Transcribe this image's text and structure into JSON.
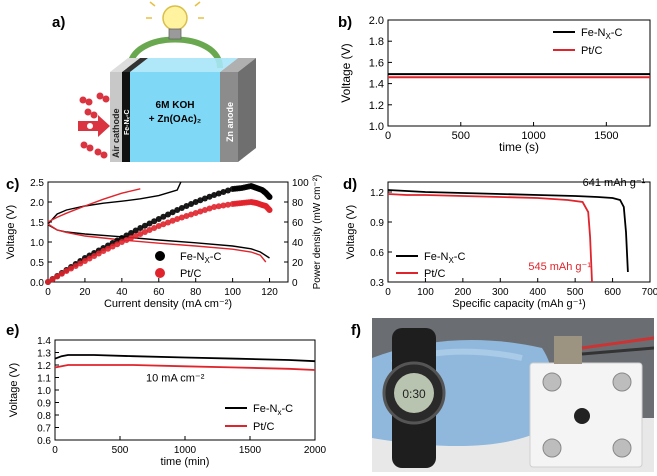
{
  "panel_labels": {
    "a": "a)",
    "b": "b)",
    "c": "c)",
    "d": "d)",
    "e": "e)",
    "f": "f)"
  },
  "schematic": {
    "air_cathode": "Air cathode",
    "catalyst": "Fe-Nₓ-C",
    "electrolyte_line1": "6M KOH",
    "electrolyte_line2": "+ Zn(OAc)₂",
    "anode": "Zn anode",
    "colors": {
      "tank": "#7fd8f5",
      "anode": "#8c8c8c",
      "cathode": "#c8c8c8",
      "wire": "#6aa84f",
      "oxygen": "#d9343f"
    }
  },
  "photo": {
    "watch_display": "0:30"
  },
  "colors": {
    "fe": "#000000",
    "pt": "#e0242c"
  },
  "chart_data": [
    {
      "id": "b",
      "type": "line",
      "xlabel": "time (s)",
      "ylabel": "Voltage (V)",
      "xlim": [
        0,
        1800
      ],
      "ylim": [
        1.0,
        2.0
      ],
      "xticks": [
        0,
        500,
        1000,
        1500
      ],
      "yticks": [
        1.0,
        1.2,
        1.4,
        1.6,
        1.8,
        2.0
      ],
      "legend": [
        {
          "name": "Fe-N",
          "sub": "X",
          "rest": "-C",
          "color": "#000000"
        },
        {
          "name": "Pt/C",
          "sub": "",
          "rest": "",
          "color": "#e0242c"
        }
      ],
      "legend_position": "top-right",
      "series": [
        {
          "name": "Fe-NX-C",
          "x": [
            0,
            1800
          ],
          "y": [
            1.49,
            1.49
          ]
        },
        {
          "name": "Pt/C",
          "x": [
            0,
            1800
          ],
          "y": [
            1.46,
            1.46
          ]
        }
      ]
    },
    {
      "id": "c",
      "type": "line",
      "xlabel": "Current density (mA cm⁻²)",
      "ylabel": "Voltage (V)",
      "y2label": "Power density (mW cm⁻²)",
      "xlim": [
        0,
        130
      ],
      "ylim": [
        0,
        2.5
      ],
      "y2lim": [
        0,
        100
      ],
      "xticks": [
        0,
        20,
        40,
        60,
        80,
        100,
        120
      ],
      "yticks": [
        0.0,
        0.5,
        1.0,
        1.5,
        2.0,
        2.5
      ],
      "y2ticks": [
        0,
        20,
        40,
        60,
        80,
        100
      ],
      "legend": [
        {
          "name": "Fe-N",
          "sub": "X",
          "rest": "-C",
          "color": "#000000"
        },
        {
          "name": "Pt/C",
          "sub": "",
          "rest": "",
          "color": "#e0242c"
        }
      ],
      "legend_position": "bottom-right",
      "charge": [
        {
          "name": "Fe-NX-C",
          "x": [
            0,
            5,
            10,
            20,
            30,
            40,
            50,
            60,
            70,
            72
          ],
          "y": [
            1.45,
            1.7,
            1.8,
            1.9,
            1.97,
            2.02,
            2.08,
            2.16,
            2.3,
            2.5
          ]
        },
        {
          "name": "Pt/C",
          "x": [
            0,
            5,
            10,
            20,
            30,
            40,
            50
          ],
          "y": [
            1.5,
            1.62,
            1.72,
            1.9,
            2.07,
            2.22,
            2.33
          ]
        }
      ],
      "discharge": [
        {
          "name": "Fe-NX-C",
          "x": [
            0,
            5,
            10,
            20,
            40,
            60,
            80,
            100,
            110,
            115,
            120
          ],
          "y": [
            1.43,
            1.3,
            1.25,
            1.2,
            1.13,
            1.05,
            0.98,
            0.9,
            0.83,
            0.75,
            0.6
          ]
        },
        {
          "name": "Pt/C",
          "x": [
            0,
            5,
            10,
            20,
            40,
            60,
            80,
            100,
            110,
            115,
            118
          ],
          "y": [
            1.45,
            1.3,
            1.24,
            1.15,
            1.05,
            0.97,
            0.9,
            0.82,
            0.75,
            0.67,
            0.5
          ]
        }
      ],
      "power": [
        {
          "name": "Fe-NX-C",
          "x": [
            0,
            10,
            20,
            30,
            40,
            50,
            60,
            70,
            80,
            90,
            100,
            105,
            110,
            113,
            116,
            118,
            120
          ],
          "y": [
            0,
            12,
            24,
            34,
            44,
            54,
            63,
            72,
            80,
            87,
            93,
            94,
            96,
            94,
            92,
            89,
            85
          ]
        },
        {
          "name": "Pt/C",
          "x": [
            0,
            10,
            20,
            30,
            40,
            50,
            60,
            70,
            80,
            90,
            100,
            105,
            110,
            113,
            116,
            118,
            120
          ],
          "y": [
            0,
            11,
            21,
            31,
            40,
            48,
            56,
            63,
            69,
            75,
            78,
            79,
            80,
            79,
            77,
            76,
            72
          ]
        }
      ]
    },
    {
      "id": "d",
      "type": "line",
      "xlabel": "Specific capacity (mAh g⁻¹)",
      "ylabel": "Voltage (V)",
      "xlim": [
        0,
        700
      ],
      "ylim": [
        0.3,
        1.3
      ],
      "xticks": [
        0,
        100,
        200,
        300,
        400,
        500,
        600,
        700
      ],
      "yticks": [
        0.3,
        0.6,
        0.9,
        1.2
      ],
      "legend": [
        {
          "name": "Fe-N",
          "sub": "X",
          "rest": "-C",
          "color": "#000000"
        },
        {
          "name": "Pt/C",
          "sub": "",
          "rest": "",
          "color": "#e0242c"
        }
      ],
      "legend_position": "bottom-left",
      "annotations": [
        {
          "text": "641 mAh g⁻¹",
          "color": "#000000"
        },
        {
          "text": "545 mAh g⁻¹",
          "color": "#e0242c"
        }
      ],
      "series": [
        {
          "name": "Fe-NX-C",
          "x": [
            0,
            50,
            100,
            200,
            300,
            400,
            500,
            560,
            600,
            620,
            630,
            636,
            641
          ],
          "y": [
            1.22,
            1.21,
            1.2,
            1.19,
            1.18,
            1.17,
            1.16,
            1.15,
            1.14,
            1.12,
            1.05,
            0.8,
            0.4
          ]
        },
        {
          "name": "Pt/C",
          "x": [
            0,
            50,
            100,
            200,
            300,
            400,
            480,
            520,
            535,
            540,
            545
          ],
          "y": [
            1.18,
            1.17,
            1.17,
            1.16,
            1.15,
            1.14,
            1.12,
            1.1,
            1.0,
            0.75,
            0.3
          ]
        }
      ]
    },
    {
      "id": "e",
      "type": "line",
      "xlabel": "time (min)",
      "ylabel": "Voltage (V)",
      "xlim": [
        0,
        2000
      ],
      "ylim": [
        0.6,
        1.4
      ],
      "xticks": [
        0,
        500,
        1000,
        1500,
        2000
      ],
      "yticks": [
        0.6,
        0.7,
        0.8,
        0.9,
        1.0,
        1.1,
        1.2,
        1.3,
        1.4
      ],
      "legend": [
        {
          "name": "Fe-N",
          "sub": "x",
          "rest": "-C",
          "color": "#000000"
        },
        {
          "name": "Pt/C",
          "sub": "",
          "rest": "",
          "color": "#e0242c"
        }
      ],
      "legend_position": "bottom-right",
      "annotation": "10 mA cm⁻²",
      "series": [
        {
          "name": "Fe-Nx-C",
          "x": [
            0,
            50,
            100,
            300,
            600,
            1000,
            1400,
            1800,
            2000
          ],
          "y": [
            1.25,
            1.27,
            1.28,
            1.28,
            1.27,
            1.26,
            1.25,
            1.24,
            1.23
          ]
        },
        {
          "name": "Pt/C",
          "x": [
            0,
            50,
            100,
            300,
            600,
            1000,
            1400,
            1800,
            2000
          ],
          "y": [
            1.18,
            1.19,
            1.2,
            1.2,
            1.2,
            1.19,
            1.18,
            1.17,
            1.16
          ]
        }
      ]
    }
  ]
}
